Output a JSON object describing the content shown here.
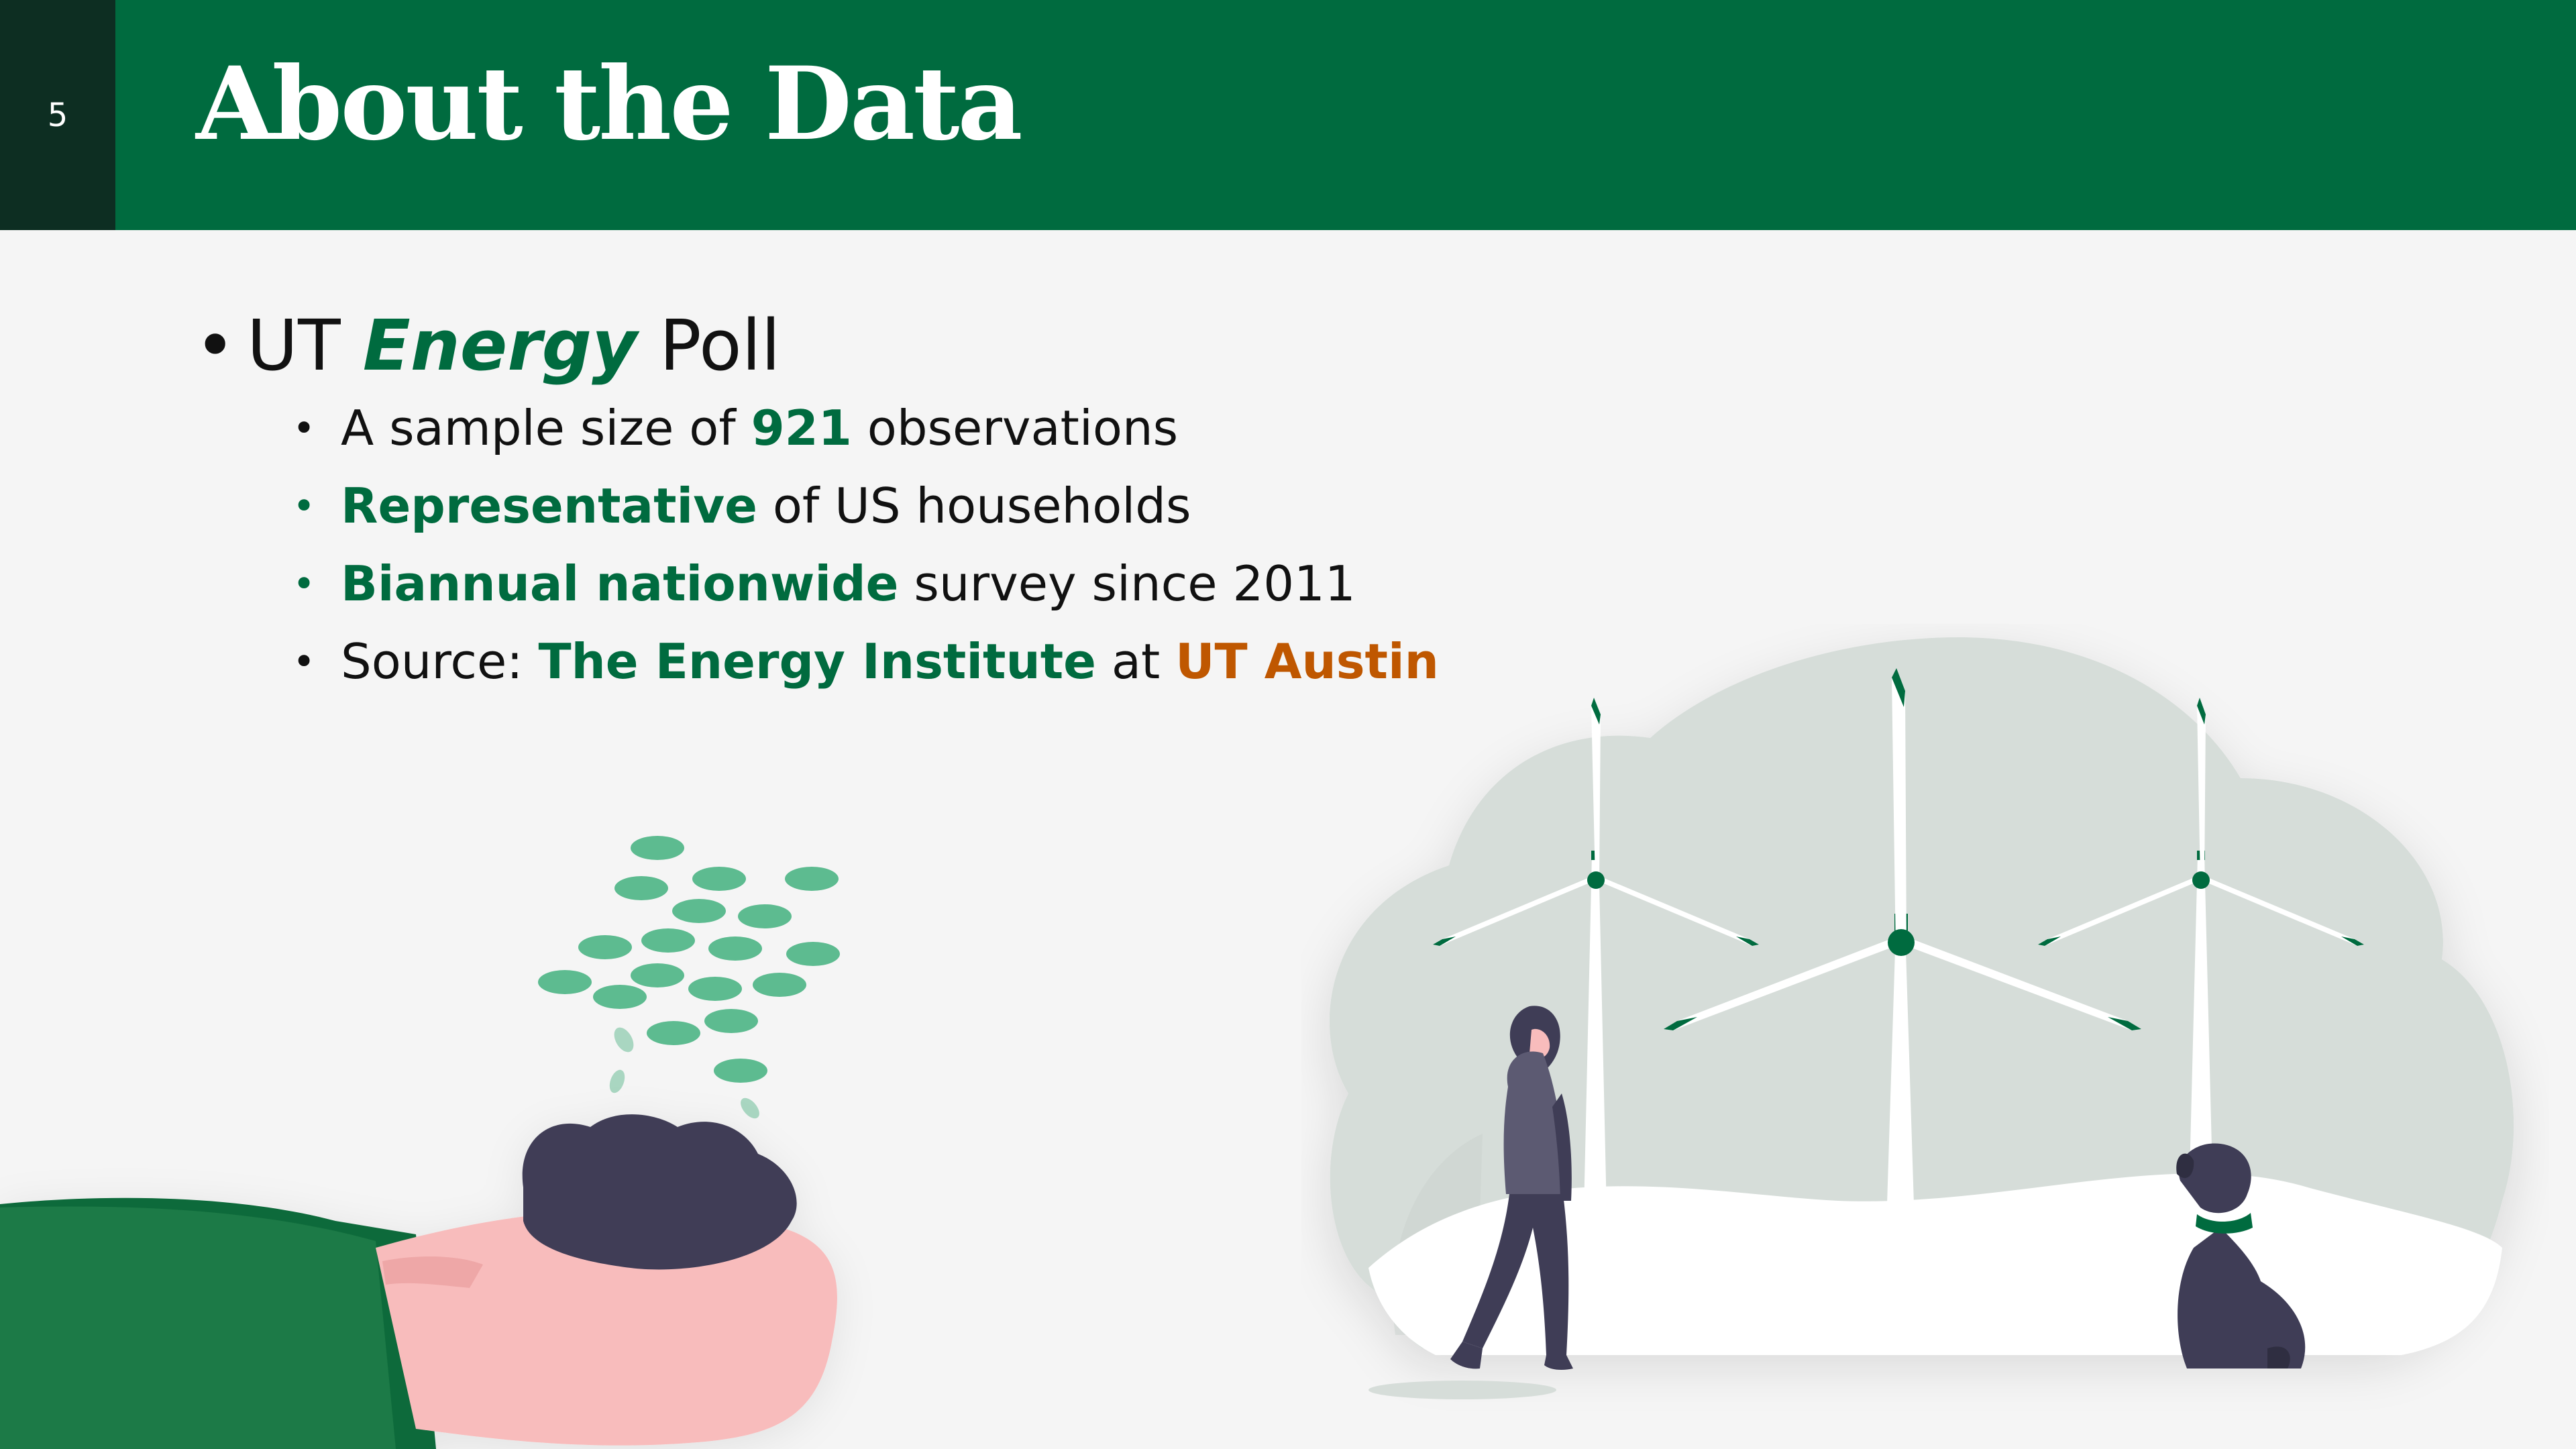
{
  "slide": {
    "number": "5",
    "title": "About the Data"
  },
  "heading": {
    "part1": "UT ",
    "emphasis": "Energy",
    "part2": " Poll"
  },
  "bullets": [
    {
      "text_before": "A sample size of ",
      "highlight": "921",
      "text_after": " observations"
    },
    {
      "highlight": "Representative",
      "text_after": " of US households"
    },
    {
      "highlight": "Biannual nationwide",
      "text_after": " survey since 2011"
    },
    {
      "text_before": "Source: ",
      "highlight": "The Energy Institute",
      "middle": " at ",
      "highlight2": "UT Austin"
    }
  ],
  "colors": {
    "header_bg": "#006b3f",
    "number_box_bg": "#0d2e22",
    "accent_green": "#006b3f",
    "accent_orange": "#bf5700",
    "page_bg": "#f5f5f5"
  },
  "illustrations": [
    "hand-holding-soil-with-seeds",
    "wind-turbines-with-person-and-dog"
  ]
}
